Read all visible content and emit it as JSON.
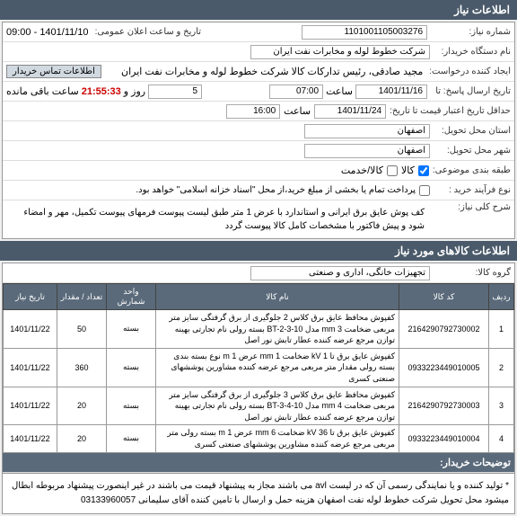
{
  "header": {
    "title": "اطلاعات نیاز"
  },
  "info": {
    "need_no_label": "شماره نیاز:",
    "need_no": "1101001105003276",
    "public_time_label": "تاریخ و ساعت اعلان عمومی:",
    "public_time": "1401/11/10 - 09:00",
    "buyer_org_label": "نام دستگاه خریدار:",
    "buyer_org": "شرکت خطوط لوله و مخابرات نفت ایران",
    "requester_label": "ایجاد کننده درخواست:",
    "requester": "مجید صادقی، رئیس تدارکات کالا  شرکت خطوط لوله و مخابرات نفت ایران",
    "contact_badge": "اطلاعات تماس خریدار",
    "reply_deadline_label": "تاریخ ارسال پاسخ: تا",
    "reply_date": "1401/11/16",
    "reply_time_label": "ساعت",
    "reply_time": "07:00",
    "days": "5",
    "days_label": "روز و",
    "countdown": "21:55:33",
    "remaining": "ساعت باقی مانده",
    "validity_label": "حداقل تاریخ اعتبار قیمت تا تاریخ:",
    "validity_date": "1401/11/24",
    "validity_time_label": "ساعت",
    "validity_time": "16:00",
    "province_label": "استان محل تحویل:",
    "province": "اصفهان",
    "city_label": "شهر محل تحویل:",
    "city": "اصفهان",
    "category_label": "طبقه بندی موضوعی:",
    "cat_goods": "کالا",
    "cat_service": "کالا/خدمت",
    "buy_type_label": "نوع فرآیند خرید :",
    "buy_type_note": "پرداخت تمام یا بخشی از مبلغ خرید،از محل \"اسناد خزانه اسلامی\" خواهد بود.",
    "desc_label": "شرح کلی نیاز:",
    "desc": "کف پوش عایق برق ایرانی و استاندارد با عرض 1 متر طبق لیست پیوست\nفرمهای پیوست تکمیل، مهر و امضاء شود و پیش فاکتور با مشخصات کامل کالا پیوست گردد"
  },
  "items_header": "اطلاعات کالاهای مورد نیاز",
  "group_label": "گروه کالا:",
  "group_value": "تجهیزات خانگی، اداری و صنعتی",
  "cols": {
    "row": "ردیف",
    "code": "کد کالا",
    "name": "نام کالا",
    "unit": "واحد شمارش",
    "qty": "تعداد / مقدار",
    "date": "تاریخ نیاز"
  },
  "rows": [
    {
      "n": "1",
      "code": "2164290792730002",
      "name": "کفپوش محافظ عایق برق کلاس 2 جلوگیری از برق گرفتگی سایز متر مربعی ضخامت mm 3 مدل BT-2-3-10 بسته رولی نام تجارتی بهینه توازن مرجع عرضه کننده عطار تابش نور اصل",
      "unit": "بسته",
      "qty": "50",
      "date": "1401/11/22"
    },
    {
      "n": "2",
      "code": "0933223449010005",
      "name": "کفپوش عایق برق تا kV 1 ضخامت mm 1 عرض m 1 نوع بسته بندی بسته رولی مقدار متر مربعی مرجع عرضه کننده مشاورین پوششهای صنعتی کسری",
      "unit": "بسته",
      "qty": "360",
      "date": "1401/11/22"
    },
    {
      "n": "3",
      "code": "2164290792730003",
      "name": "کفپوش محافظ عایق برق کلاس 3 جلوگیری از برق گرفتگی سایز متر مربعی ضخامت mm 4 مدل BT-3-4-10 بسته رولی نام تجارتی بهینه توازن مرجع عرضه کننده عطار تابش نور اصل",
      "unit": "بسته",
      "qty": "20",
      "date": "1401/11/22"
    },
    {
      "n": "4",
      "code": "0933223449010004",
      "name": "کفپوش عایق برق تا kV 36 ضخامت mm 6 عرض m 1 بسته رولی متر مربعی مرجع عرضه کننده مشاورین پوششهای صنعتی کسری",
      "unit": "بسته",
      "qty": "20",
      "date": "1401/11/22"
    }
  ],
  "footer_header": "توضیحات خریدار:",
  "footer": "* تولید کننده و یا نمایندگی رسمی آن که در لیست avl می باشند مجاز به پیشنهاد قیمت می باشند در غیر اینصورت پیشنهاد مربوطه ابطال میشود\nمحل تحویل شرکت خطوط لوله نفت اصفهان هزینه حمل و ارسال با تامین کننده\nآقای  سلیمانی 03133960057"
}
